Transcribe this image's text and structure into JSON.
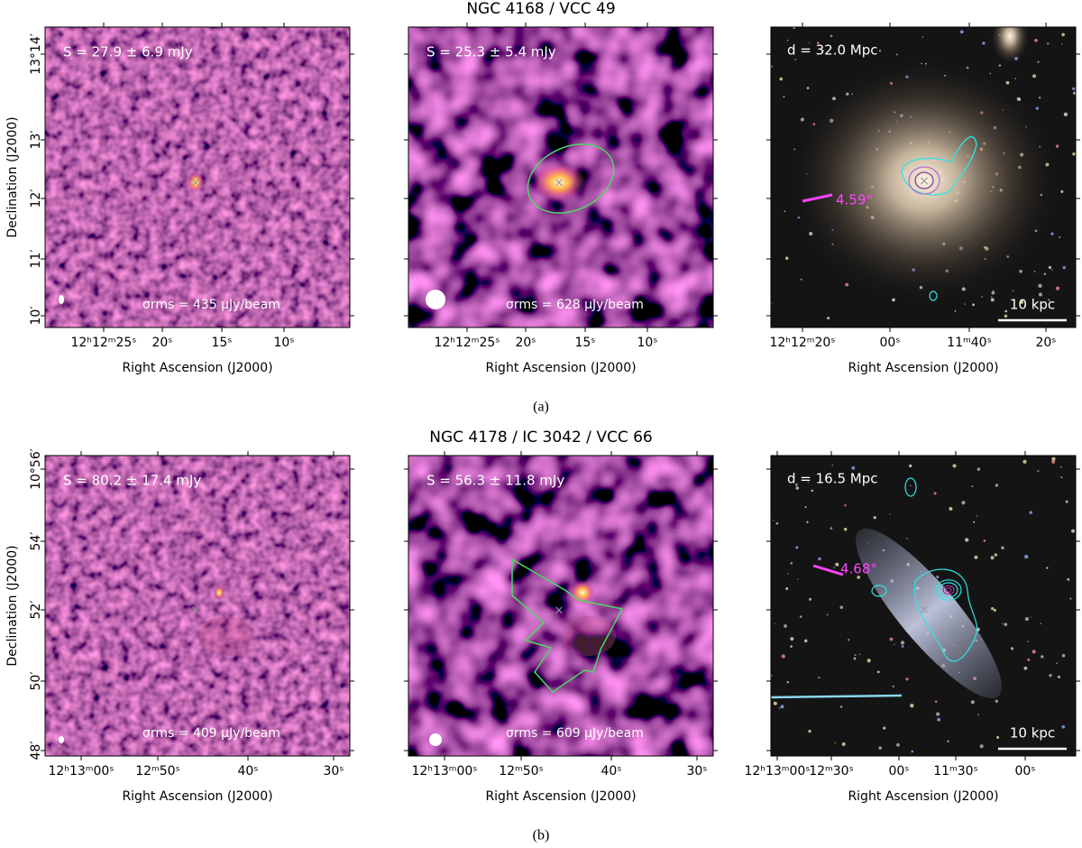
{
  "figure": {
    "rows": [
      {
        "title": "NGC 4168 / VCC 49",
        "caption": "(a)",
        "panels": [
          {
            "flux": "S = 27.9 ± 6.9 mJy",
            "rms": "σrms = 435 μJy/beam",
            "x_ticks": [
              "12ʰ12ᵐ25ˢ",
              "20ˢ",
              "15ˢ",
              "10ˢ"
            ],
            "y_ticks": [
              "13°14′",
              "13′",
              "12′",
              "11′",
              "10′"
            ],
            "x_label": "Right Ascension (J2000)",
            "y_label": "Declination (J2000)"
          },
          {
            "flux": "S = 25.3 ± 5.4 mJy",
            "rms": "σrms = 628 μJy/beam",
            "x_ticks": [
              "12ʰ12ᵐ25ˢ",
              "20ˢ",
              "15ˢ",
              "10ˢ"
            ],
            "x_label": "Right Ascension (J2000)"
          },
          {
            "distance": "d = 32.0 Mpc",
            "angle": "4.59°",
            "scale_bar": "10 kpc",
            "x_ticks": [
              "12ʰ12ᵐ20ˢ",
              "00ˢ",
              "11ᵐ40ˢ",
              "20ˢ"
            ],
            "x_label": "Right Ascension (J2000)"
          }
        ]
      },
      {
        "title": "NGC 4178 / IC 3042 / VCC 66",
        "caption": "(b)",
        "panels": [
          {
            "flux": "S = 80.2 ± 17.4 mJy",
            "rms": "σrms = 409 μJy/beam",
            "x_ticks": [
              "12ʰ13ᵐ00ˢ",
              "12ᵐ50ˢ",
              "40ˢ",
              "30ˢ"
            ],
            "y_ticks": [
              "10°56′",
              "54′",
              "52′",
              "50′",
              "48′"
            ],
            "x_label": "Right Ascension (J2000)",
            "y_label": "Declination (J2000)"
          },
          {
            "flux": "S = 56.3 ± 11.8 mJy",
            "rms": "σrms = 609 μJy/beam",
            "x_ticks": [
              "12ʰ13ᵐ00ˢ",
              "12ᵐ50ˢ",
              "40ˢ",
              "30ˢ"
            ],
            "x_label": "Right Ascension (J2000)"
          },
          {
            "distance": "d = 16.5 Mpc",
            "angle": "4.68°",
            "scale_bar": "10 kpc",
            "x_ticks": [
              "12ʰ13ᵐ00ˢ",
              "12ᵐ30ˢ",
              "00ˢ",
              "11ᵐ30ˢ",
              "00ˢ"
            ],
            "x_label": "Right Ascension (J2000)"
          }
        ]
      }
    ]
  }
}
